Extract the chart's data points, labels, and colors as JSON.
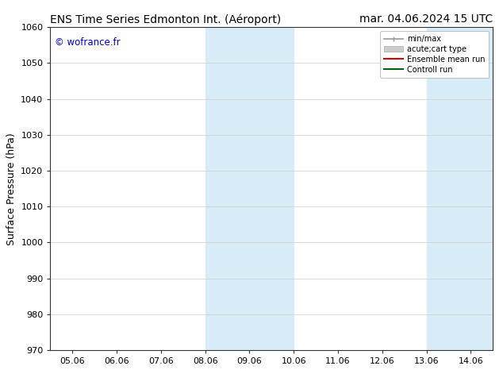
{
  "title_left": "ENS Time Series Edmonton Int. (Aéroport)",
  "title_right": "mar. 04.06.2024 15 UTC",
  "ylabel": "Surface Pressure (hPa)",
  "ylim": [
    970,
    1060
  ],
  "yticks": [
    970,
    980,
    990,
    1000,
    1010,
    1020,
    1030,
    1040,
    1050,
    1060
  ],
  "xtick_labels": [
    "05.06",
    "06.06",
    "07.06",
    "08.06",
    "09.06",
    "10.06",
    "11.06",
    "12.06",
    "13.06",
    "14.06"
  ],
  "watermark": "© wofrance.fr",
  "watermark_color": "#0000cc",
  "legend_entries": [
    {
      "label": "min/max",
      "color": "#999999",
      "lw": 1.2
    },
    {
      "label": "acute;cart type",
      "color": "#cccccc",
      "lw": 6
    },
    {
      "label": "Ensemble mean run",
      "color": "#cc0000",
      "lw": 1.5
    },
    {
      "label": "Controll run",
      "color": "#006600",
      "lw": 1.5
    }
  ],
  "band_color": "#d8ecf8",
  "bg_color": "#ffffff",
  "title_fontsize": 10,
  "axis_fontsize": 9,
  "tick_fontsize": 8
}
